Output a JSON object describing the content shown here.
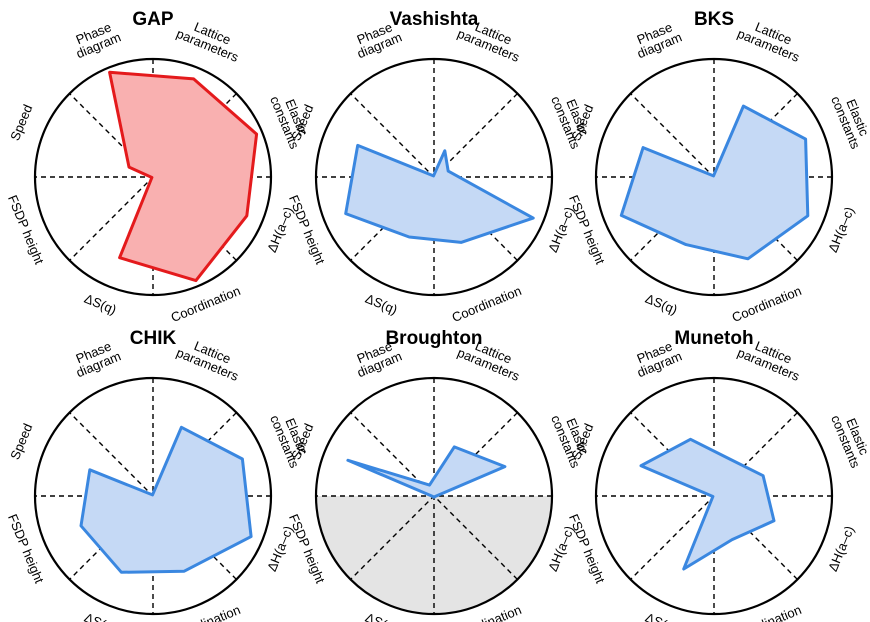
{
  "chart_data": [
    {
      "type": "radar",
      "title": "GAP",
      "axes": [
        {
          "label": [
            "Lattice",
            "parameters"
          ]
        },
        {
          "label": [
            "Elastic",
            "constants"
          ]
        },
        {
          "label": [
            "ΔH(a–c)"
          ]
        },
        {
          "label": [
            "Coordination"
          ]
        },
        {
          "label": [
            "ΔS(q)"
          ]
        },
        {
          "label": [
            "FSDP height"
          ]
        },
        {
          "label": [
            "Speed"
          ]
        },
        {
          "label": [
            "Phase",
            "diagram"
          ]
        }
      ],
      "values": [
        0.9,
        0.95,
        0.86,
        0.95,
        0.74,
        0.01,
        0.22,
        0.96
      ],
      "color": "#e41a1c",
      "fill": "#f9b0b0",
      "shaded_lower_half": false
    },
    {
      "type": "radar",
      "title": "Vashishta",
      "axes": [
        {
          "label": [
            "Lattice",
            "parameters"
          ]
        },
        {
          "label": [
            "Elastic",
            "constants"
          ]
        },
        {
          "label": [
            "ΔH(a–c)"
          ]
        },
        {
          "label": [
            "Coordination"
          ]
        },
        {
          "label": [
            "ΔS(q)"
          ]
        },
        {
          "label": [
            "FSDP height"
          ]
        },
        {
          "label": [
            "Speed"
          ]
        },
        {
          "label": [
            "Phase",
            "diagram"
          ]
        }
      ],
      "values": [
        0.24,
        0.13,
        0.91,
        0.6,
        0.55,
        0.81,
        0.7,
        0.01
      ],
      "color": "#3a87e0",
      "fill": "#c5d9f5",
      "shaded_lower_half": false
    },
    {
      "type": "radar",
      "title": "BKS",
      "axes": [
        {
          "label": [
            "Lattice",
            "parameters"
          ]
        },
        {
          "label": [
            "Elastic",
            "constants"
          ]
        },
        {
          "label": [
            "ΔH(a–c)"
          ]
        },
        {
          "label": [
            "Coordination"
          ]
        },
        {
          "label": [
            "ΔS(q)"
          ]
        },
        {
          "label": [
            "FSDP height"
          ]
        },
        {
          "label": [
            "Speed"
          ]
        },
        {
          "label": [
            "Phase",
            "diagram"
          ]
        }
      ],
      "values": [
        0.65,
        0.84,
        0.86,
        0.75,
        0.62,
        0.85,
        0.65,
        0.01
      ],
      "color": "#3a87e0",
      "fill": "#c5d9f5",
      "shaded_lower_half": false
    },
    {
      "type": "radar",
      "title": "CHIK",
      "axes": [
        {
          "label": [
            "Lattice",
            "parameters"
          ]
        },
        {
          "label": [
            "Elastic",
            "constants"
          ]
        },
        {
          "label": [
            "ΔH(a–c)"
          ]
        },
        {
          "label": [
            "Coordination"
          ]
        },
        {
          "label": [
            "ΔS(q)"
          ]
        },
        {
          "label": [
            "FSDP height"
          ]
        },
        {
          "label": [
            "Speed"
          ]
        },
        {
          "label": [
            "Phase",
            "diagram"
          ]
        }
      ],
      "values": [
        0.63,
        0.82,
        0.9,
        0.69,
        0.7,
        0.66,
        0.58,
        0.01
      ],
      "color": "#3a87e0",
      "fill": "#c5d9f5",
      "shaded_lower_half": false
    },
    {
      "type": "radar",
      "title": "Broughton",
      "axes": [
        {
          "label": [
            "Lattice",
            "parameters"
          ]
        },
        {
          "label": [
            "Elastic",
            "constants"
          ]
        },
        {
          "label": [
            "ΔH(a–c)"
          ]
        },
        {
          "label": [
            "Coordination"
          ]
        },
        {
          "label": [
            "ΔS(q)"
          ]
        },
        {
          "label": [
            "FSDP height"
          ]
        },
        {
          "label": [
            "Speed"
          ]
        },
        {
          "label": [
            "Phase",
            "diagram"
          ]
        }
      ],
      "values": [
        0.45,
        0.65,
        0.01,
        0.01,
        0.01,
        0.01,
        0.79,
        0.1
      ],
      "color": "#3a87e0",
      "fill": "#c5d9f5",
      "shaded_lower_half": true,
      "shade_color": "#e4e4e4"
    },
    {
      "type": "radar",
      "title": "Munetoh",
      "axes": [
        {
          "label": [
            "Lattice",
            "parameters"
          ]
        },
        {
          "label": [
            "Elastic",
            "constants"
          ]
        },
        {
          "label": [
            "ΔH(a–c)"
          ]
        },
        {
          "label": [
            "Coordination"
          ]
        },
        {
          "label": [
            "ΔS(q)"
          ]
        },
        {
          "label": [
            "FSDP height"
          ]
        },
        {
          "label": [
            "Speed"
          ]
        },
        {
          "label": [
            "Phase",
            "diagram"
          ]
        }
      ],
      "values": [
        0.34,
        0.45,
        0.55,
        0.4,
        0.67,
        0.01,
        0.67,
        0.52
      ],
      "color": "#3a87e0",
      "fill": "#c5d9f5",
      "shaded_lower_half": false
    }
  ]
}
